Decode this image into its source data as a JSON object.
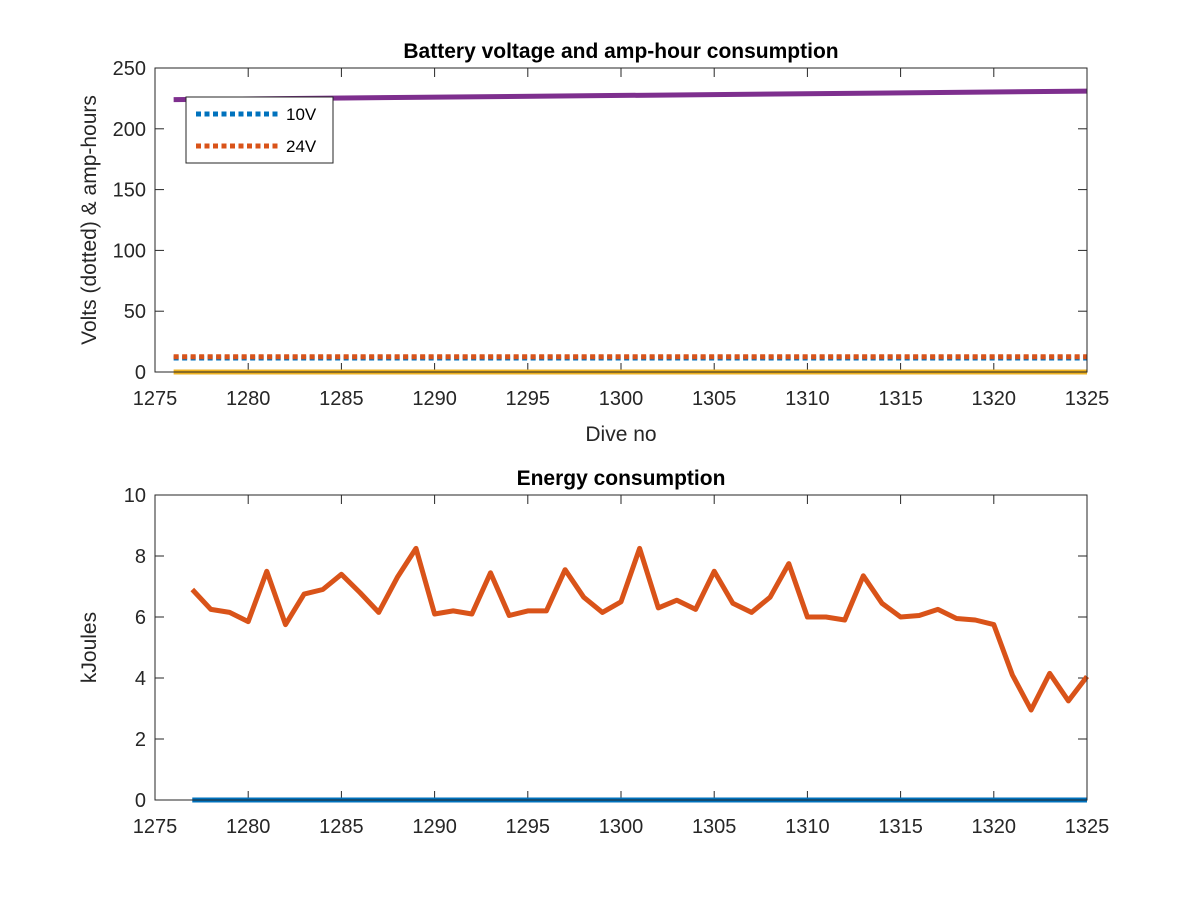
{
  "chart_data": [
    {
      "type": "line",
      "title": "Battery voltage and amp-hour consumption",
      "xlabel": "Dive no",
      "ylabel": "Volts (dotted) & amp-hours",
      "xlim": [
        1275,
        1325
      ],
      "ylim": [
        0,
        250
      ],
      "xticks": [
        1275,
        1280,
        1285,
        1290,
        1295,
        1300,
        1305,
        1310,
        1315,
        1320,
        1325
      ],
      "yticks": [
        0,
        50,
        100,
        150,
        200,
        250
      ],
      "legend": {
        "position": "top-left",
        "entries": [
          "10V",
          "24V"
        ]
      },
      "series": [
        {
          "name": "10V",
          "style": "dotted",
          "color": "#0072bd",
          "x": [
            1276,
            1325
          ],
          "y": [
            11.5,
            11.5
          ]
        },
        {
          "name": "24V",
          "style": "dotted",
          "color": "#d95319",
          "x": [
            1276,
            1325
          ],
          "y": [
            12.5,
            12.5
          ]
        },
        {
          "style": "solid",
          "color": "#edb120",
          "x": [
            1276,
            1325
          ],
          "y": [
            0,
            0
          ]
        },
        {
          "style": "solid",
          "color": "#7e2f8e",
          "x": [
            1276,
            1325
          ],
          "y": [
            224,
            231
          ]
        }
      ]
    },
    {
      "type": "line",
      "title": "Energy consumption",
      "xlabel": "",
      "ylabel": "kJoules",
      "xlim": [
        1275,
        1325
      ],
      "ylim": [
        0,
        10
      ],
      "xticks": [
        1275,
        1280,
        1285,
        1290,
        1295,
        1300,
        1305,
        1310,
        1315,
        1320,
        1325
      ],
      "yticks": [
        0,
        2,
        4,
        6,
        8,
        10
      ],
      "series": [
        {
          "style": "solid",
          "color": "#d95319",
          "x": [
            1277,
            1278,
            1279,
            1280,
            1281,
            1282,
            1283,
            1284,
            1285,
            1286,
            1287,
            1288,
            1289,
            1290,
            1291,
            1292,
            1293,
            1294,
            1295,
            1296,
            1297,
            1298,
            1299,
            1300,
            1301,
            1302,
            1303,
            1304,
            1305,
            1306,
            1307,
            1308,
            1309,
            1310,
            1311,
            1312,
            1313,
            1314,
            1315,
            1316,
            1317,
            1318,
            1319,
            1320,
            1321,
            1322,
            1323,
            1324,
            1325
          ],
          "y": [
            6.9,
            6.25,
            6.15,
            5.85,
            7.5,
            5.75,
            6.75,
            6.9,
            7.4,
            6.8,
            6.15,
            7.3,
            8.25,
            6.1,
            6.2,
            6.1,
            7.45,
            6.05,
            6.2,
            6.2,
            7.55,
            6.65,
            6.15,
            6.5,
            8.25,
            6.3,
            6.55,
            6.25,
            7.5,
            6.45,
            6.15,
            6.65,
            7.75,
            6.0,
            6.0,
            5.9,
            7.35,
            6.45,
            6.0,
            6.05,
            6.25,
            5.95,
            5.9,
            5.75,
            4.1,
            2.95,
            4.15,
            3.25,
            4.05
          ]
        },
        {
          "style": "solid",
          "color": "#0072bd",
          "x": [
            1277,
            1325
          ],
          "y": [
            0,
            0
          ]
        }
      ]
    }
  ]
}
